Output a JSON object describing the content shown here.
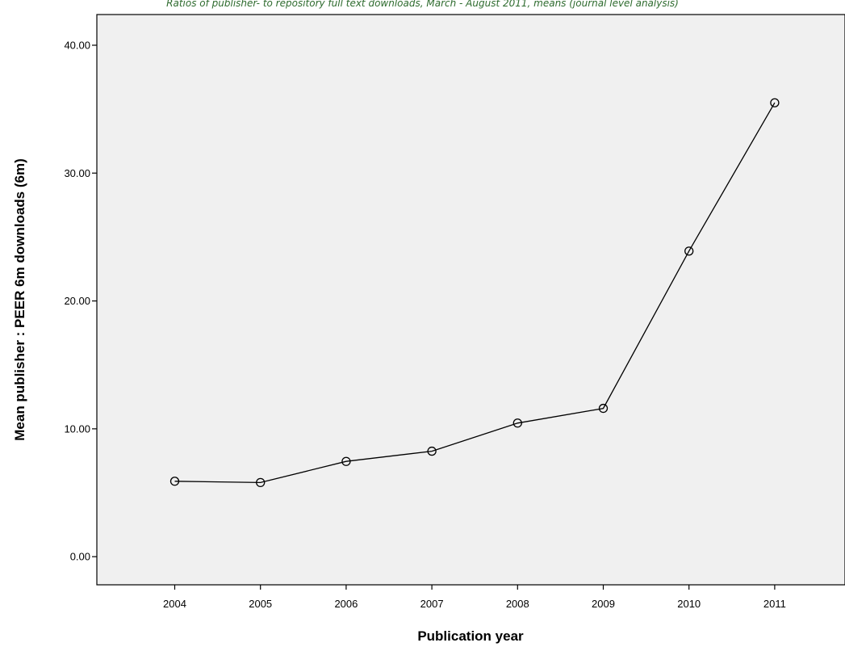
{
  "chart_data": {
    "type": "line",
    "title": "Ratios of publisher- to repository full text downloads, March - August 2011, means (journal level analysis)",
    "xlabel": "Publication year",
    "ylabel": "Mean publisher : PEER 6m downloads (6m)",
    "categories": [
      "2004",
      "2005",
      "2006",
      "2007",
      "2008",
      "2009",
      "2010",
      "2011"
    ],
    "values": [
      5.9,
      5.8,
      7.45,
      8.25,
      10.45,
      11.6,
      23.9,
      35.5
    ],
    "y_ticks": [
      "0.00",
      "10.00",
      "20.00",
      "30.00",
      "40.00"
    ],
    "ylim": [
      -2.2,
      42.4
    ],
    "grid": false,
    "marker": "open-circle",
    "colors": {
      "plot_bg": "#f0f0f0",
      "line": "#000000",
      "title": "#2e6b2e"
    }
  }
}
